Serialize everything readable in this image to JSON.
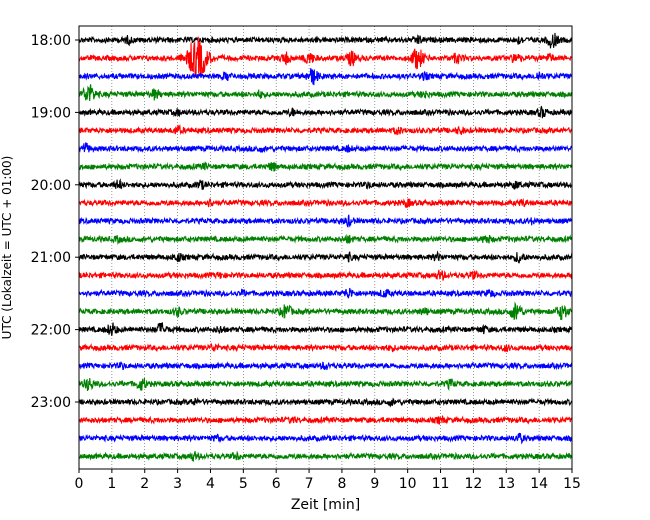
{
  "chart_data": {
    "type": "line",
    "xlabel": "Zeit  [min]",
    "ylabel": "UTC (Lokalzeit = UTC + 01:00)",
    "xlim": [
      0,
      15
    ],
    "x_ticks": [
      0,
      1,
      2,
      3,
      4,
      5,
      6,
      7,
      8,
      9,
      10,
      11,
      12,
      13,
      14,
      15
    ],
    "y_ticks": [
      "18:00",
      "19:00",
      "20:00",
      "21:00",
      "22:00",
      "23:00"
    ],
    "x_grid": true,
    "line_colors": [
      "#000000",
      "#ff0000",
      "#0000ff",
      "#008000"
    ],
    "series": [
      {
        "time": "18:00",
        "color": "#000000",
        "bursts": [
          {
            "x": 14.4,
            "amp": 1.0
          },
          {
            "x": 10.3,
            "amp": 0.5
          },
          {
            "x": 1.5,
            "amp": 0.4
          },
          {
            "x": 13.4,
            "amp": 0.4
          }
        ]
      },
      {
        "time": "18:15",
        "color": "#ff0000",
        "bursts": [
          {
            "x": 3.6,
            "amp": 3.0
          },
          {
            "x": 10.3,
            "amp": 1.4
          },
          {
            "x": 8.3,
            "amp": 0.9
          },
          {
            "x": 7.0,
            "amp": 0.8
          },
          {
            "x": 6.3,
            "amp": 0.7
          },
          {
            "x": 11.5,
            "amp": 0.6
          },
          {
            "x": 13.3,
            "amp": 0.6
          },
          {
            "x": 14.3,
            "amp": 0.5
          }
        ]
      },
      {
        "time": "18:30",
        "color": "#0000ff",
        "bursts": [
          {
            "x": 7.1,
            "amp": 1.1
          },
          {
            "x": 4.5,
            "amp": 0.5
          },
          {
            "x": 10.5,
            "amp": 0.4
          },
          {
            "x": 14.0,
            "amp": 0.5
          }
        ]
      },
      {
        "time": "18:45",
        "color": "#008000",
        "bursts": [
          {
            "x": 0.3,
            "amp": 1.3
          },
          {
            "x": 2.3,
            "amp": 0.6
          },
          {
            "x": 5.5,
            "amp": 0.4
          },
          {
            "x": 10.5,
            "amp": 0.4
          }
        ]
      },
      {
        "time": "19:00",
        "color": "#000000",
        "bursts": [
          {
            "x": 14.1,
            "amp": 0.6
          },
          {
            "x": 6.5,
            "amp": 0.4
          },
          {
            "x": 3.0,
            "amp": 0.3
          }
        ]
      },
      {
        "time": "19:15",
        "color": "#ff0000",
        "bursts": [
          {
            "x": 3.0,
            "amp": 0.5
          },
          {
            "x": 9.7,
            "amp": 0.4
          },
          {
            "x": 11.6,
            "amp": 0.4
          }
        ]
      },
      {
        "time": "19:30",
        "color": "#0000ff",
        "bursts": [
          {
            "x": 0.2,
            "amp": 0.6
          },
          {
            "x": 5.5,
            "amp": 0.3
          },
          {
            "x": 8.2,
            "amp": 0.3
          }
        ]
      },
      {
        "time": "19:45",
        "color": "#008000",
        "bursts": [
          {
            "x": 5.9,
            "amp": 0.5
          },
          {
            "x": 3.8,
            "amp": 0.3
          }
        ]
      },
      {
        "time": "20:00",
        "color": "#000000",
        "bursts": [
          {
            "x": 1.2,
            "amp": 0.5
          },
          {
            "x": 3.7,
            "amp": 0.5
          },
          {
            "x": 8.8,
            "amp": 0.3
          },
          {
            "x": 13.3,
            "amp": 0.4
          }
        ]
      },
      {
        "time": "20:15",
        "color": "#ff0000",
        "bursts": [
          {
            "x": 4.0,
            "amp": 0.4
          },
          {
            "x": 10.0,
            "amp": 0.4
          },
          {
            "x": 13.5,
            "amp": 0.3
          }
        ]
      },
      {
        "time": "20:30",
        "color": "#0000ff",
        "bursts": [
          {
            "x": 8.2,
            "amp": 0.6
          },
          {
            "x": 13.8,
            "amp": 0.3
          }
        ]
      },
      {
        "time": "20:45",
        "color": "#008000",
        "bursts": [
          {
            "x": 12.4,
            "amp": 0.5
          },
          {
            "x": 8.2,
            "amp": 0.4
          },
          {
            "x": 1.2,
            "amp": 0.3
          }
        ]
      },
      {
        "time": "21:00",
        "color": "#000000",
        "bursts": [
          {
            "x": 13.4,
            "amp": 0.7
          },
          {
            "x": 3.0,
            "amp": 0.5
          },
          {
            "x": 8.2,
            "amp": 0.4
          },
          {
            "x": 10.9,
            "amp": 0.4
          }
        ]
      },
      {
        "time": "21:15",
        "color": "#ff0000",
        "bursts": [
          {
            "x": 11.0,
            "amp": 0.6
          },
          {
            "x": 12.0,
            "amp": 0.4
          },
          {
            "x": 4.3,
            "amp": 0.3
          }
        ]
      },
      {
        "time": "21:30",
        "color": "#0000ff",
        "bursts": [
          {
            "x": 8.2,
            "amp": 0.6
          },
          {
            "x": 9.3,
            "amp": 0.5
          },
          {
            "x": 12.5,
            "amp": 0.4
          },
          {
            "x": 5.0,
            "amp": 0.3
          }
        ]
      },
      {
        "time": "21:45",
        "color": "#008000",
        "bursts": [
          {
            "x": 13.3,
            "amp": 1.2
          },
          {
            "x": 14.7,
            "amp": 1.0
          },
          {
            "x": 6.3,
            "amp": 0.9
          },
          {
            "x": 3.0,
            "amp": 0.5
          },
          {
            "x": 10.5,
            "amp": 0.4
          }
        ]
      },
      {
        "time": "22:00",
        "color": "#000000",
        "bursts": [
          {
            "x": 1.0,
            "amp": 0.8
          },
          {
            "x": 2.5,
            "amp": 0.8
          },
          {
            "x": 4.3,
            "amp": 0.4
          },
          {
            "x": 12.3,
            "amp": 0.4
          }
        ]
      },
      {
        "time": "22:15",
        "color": "#ff0000",
        "bursts": [
          {
            "x": 4.1,
            "amp": 0.4
          },
          {
            "x": 9.5,
            "amp": 0.3
          },
          {
            "x": 13.0,
            "amp": 0.3
          }
        ]
      },
      {
        "time": "22:30",
        "color": "#0000ff",
        "bursts": [
          {
            "x": 7.5,
            "amp": 0.4
          },
          {
            "x": 1.3,
            "amp": 0.3
          }
        ]
      },
      {
        "time": "22:45",
        "color": "#008000",
        "bursts": [
          {
            "x": 0.3,
            "amp": 0.8
          },
          {
            "x": 1.9,
            "amp": 0.8
          },
          {
            "x": 11.3,
            "amp": 0.5
          }
        ]
      },
      {
        "time": "23:00",
        "color": "#000000",
        "bursts": [
          {
            "x": 9.5,
            "amp": 0.3
          },
          {
            "x": 3.5,
            "amp": 0.3
          }
        ]
      },
      {
        "time": "23:15",
        "color": "#ff0000",
        "bursts": [
          {
            "x": 11.0,
            "amp": 0.4
          },
          {
            "x": 6.5,
            "amp": 0.3
          }
        ]
      },
      {
        "time": "23:30",
        "color": "#0000ff",
        "bursts": [
          {
            "x": 13.4,
            "amp": 0.5
          },
          {
            "x": 4.2,
            "amp": 0.3
          }
        ]
      },
      {
        "time": "23:45",
        "color": "#008000",
        "bursts": [
          {
            "x": 3.5,
            "amp": 0.5
          },
          {
            "x": 4.8,
            "amp": 0.4
          }
        ]
      }
    ]
  }
}
